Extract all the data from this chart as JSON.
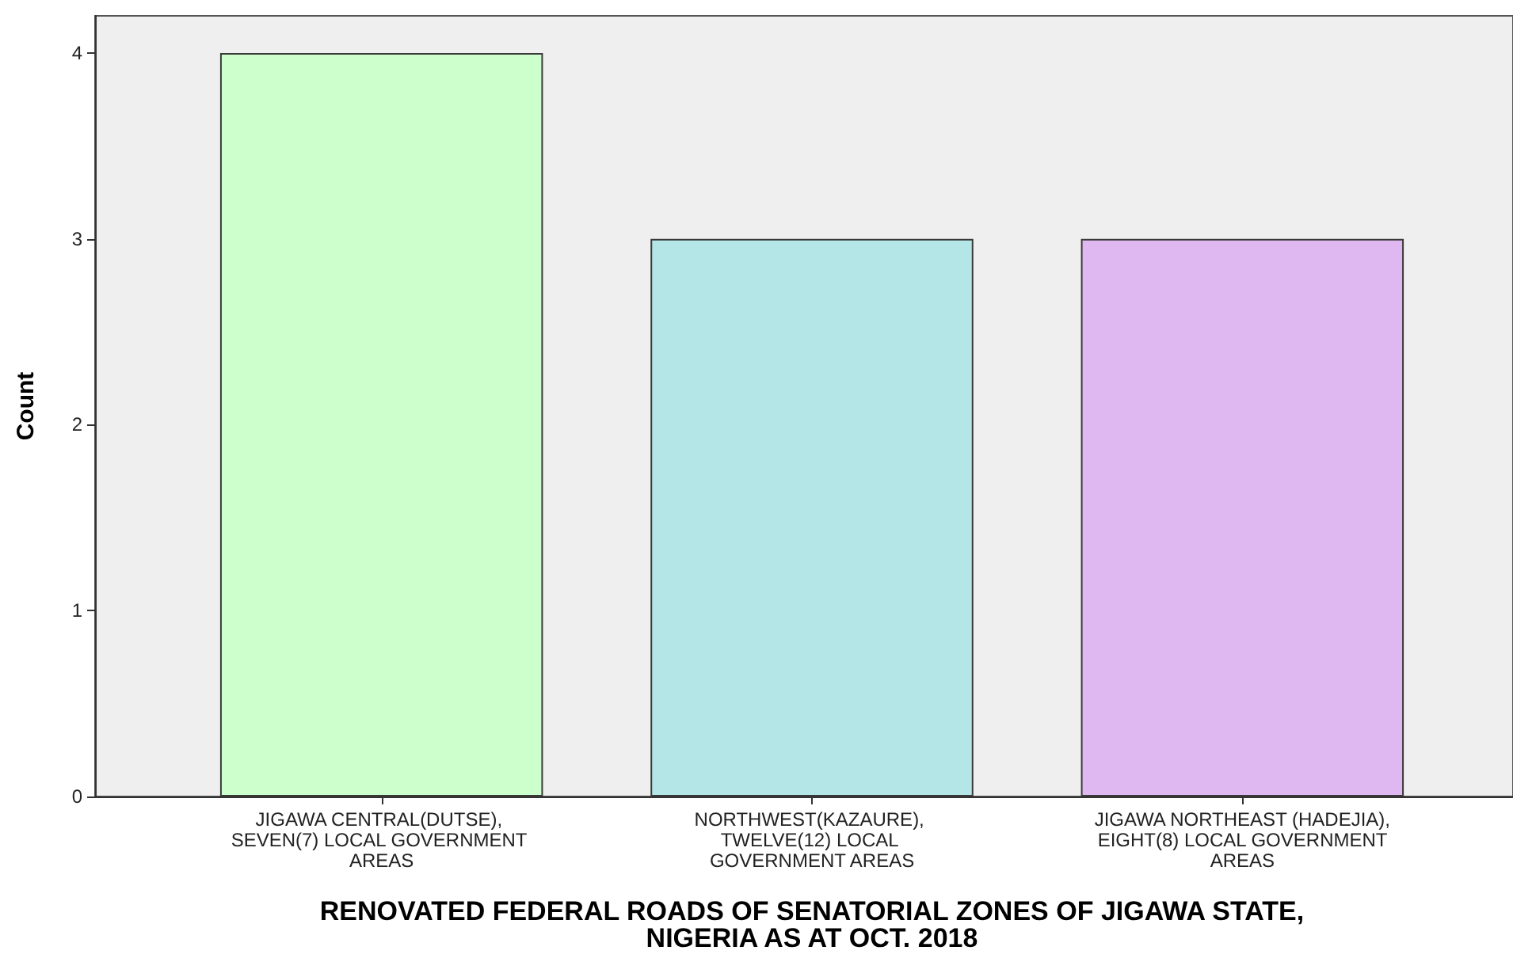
{
  "chart_data": {
    "type": "bar",
    "xlabel": "RENOVATED FEDERAL ROADS OF SENATORIAL ZONES OF JIGAWA STATE, NIGERIA AS AT OCT. 2018",
    "ylabel": "Count",
    "categories": [
      "JIGAWA CENTRAL(DUTSE), SEVEN(7) LOCAL GOVERNMENT AREAS",
      "NORTHWEST(KAZAURE), TWELVE(12) LOCAL GOVERNMENT AREAS",
      "JIGAWA NORTHEAST (HADEJIA), EIGHT(8) LOCAL GOVERNMENT AREAS"
    ],
    "values": [
      4,
      3,
      3
    ],
    "colors": [
      "#ccffcc",
      "#b4e6e8",
      "#dfb8f2"
    ],
    "ylim": [
      0,
      4.2
    ],
    "yticks": [
      0,
      1,
      2,
      3,
      4
    ]
  }
}
